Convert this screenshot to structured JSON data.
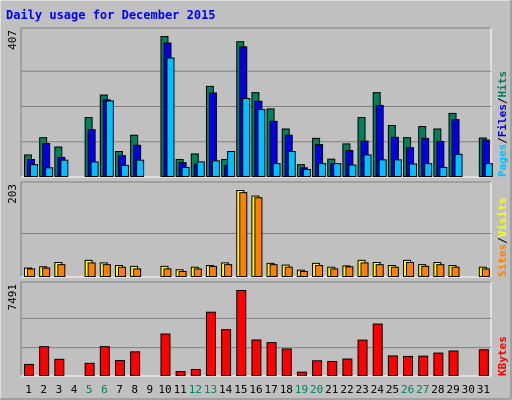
{
  "title": "Daily usage for December 2015",
  "colors": {
    "background": "#C0C0C0",
    "hits": "#00805C",
    "files": "#0000E6",
    "pages": "#00C0FF",
    "visits": "#FFFF00",
    "sites": "#FF8000",
    "kbytes": "#FF0000",
    "weekend_label": "#00805C",
    "weekday_label": "#000000",
    "title": "#0000FF"
  },
  "chart_data": [
    {
      "type": "bar",
      "panel": "hits-files-pages",
      "max_label": "407",
      "ylim": [
        0,
        407
      ],
      "legend": [
        "Pages",
        "Files",
        "Hits"
      ],
      "categories": [
        "1",
        "2",
        "3",
        "4",
        "5",
        "6",
        "7",
        "8",
        "9",
        "10",
        "11",
        "12",
        "13",
        "14",
        "15",
        "16",
        "17",
        "18",
        "19",
        "20",
        "21",
        "22",
        "23",
        "24",
        "25",
        "26",
        "27",
        "28",
        "29",
        "30",
        "31"
      ],
      "weekend": [
        5,
        6,
        12,
        13,
        19,
        20,
        26,
        27
      ],
      "series": [
        {
          "name": "Hits",
          "values": [
            65,
            115,
            88,
            0,
            173,
            238,
            75,
            122,
            0,
            407,
            52,
            68,
            263,
            52,
            392,
            245,
            198,
            140,
            37,
            113,
            53,
            97,
            173,
            245,
            150,
            115,
            147,
            140,
            185,
            0,
            114
          ]
        },
        {
          "name": "Files",
          "values": [
            52,
            98,
            58,
            0,
            138,
            224,
            63,
            93,
            0,
            388,
            43,
            38,
            244,
            35,
            377,
            220,
            162,
            122,
            28,
            95,
            40,
            78,
            105,
            208,
            116,
            86,
            113,
            104,
            167,
            0,
            108
          ]
        },
        {
          "name": "Pages",
          "values": [
            37,
            28,
            50,
            0,
            45,
            221,
            35,
            50,
            0,
            345,
            29,
            45,
            48,
            75,
            228,
            196,
            40,
            75,
            23,
            40,
            40,
            36,
            65,
            51,
            51,
            39,
            40,
            29,
            67,
            0,
            40
          ]
        }
      ]
    },
    {
      "type": "bar",
      "panel": "visits-sites",
      "max_label": "203",
      "ylim": [
        0,
        203
      ],
      "legend": [
        "Sites",
        "Visits"
      ],
      "categories": [
        "1",
        "2",
        "3",
        "4",
        "5",
        "6",
        "7",
        "8",
        "9",
        "10",
        "11",
        "12",
        "13",
        "14",
        "15",
        "16",
        "17",
        "18",
        "19",
        "20",
        "21",
        "22",
        "23",
        "24",
        "25",
        "26",
        "27",
        "28",
        "29",
        "30",
        "31"
      ],
      "series": [
        {
          "name": "Visits",
          "values": [
            22,
            25,
            35,
            0,
            40,
            34,
            28,
            26,
            0,
            26,
            18,
            24,
            28,
            34,
            203,
            190,
            33,
            29,
            17,
            33,
            24,
            27,
            40,
            35,
            28,
            40,
            30,
            35,
            28,
            0,
            24
          ]
        },
        {
          "name": "Sites",
          "values": [
            20,
            22,
            30,
            0,
            34,
            30,
            24,
            20,
            0,
            20,
            14,
            20,
            26,
            30,
            198,
            186,
            30,
            24,
            14,
            28,
            20,
            25,
            34,
            30,
            24,
            35,
            26,
            30,
            24,
            0,
            20
          ]
        }
      ]
    },
    {
      "type": "bar",
      "panel": "kbytes",
      "max_label": "7491",
      "ylim": [
        0,
        7491
      ],
      "legend": [
        "KBytes"
      ],
      "categories": [
        "1",
        "2",
        "3",
        "4",
        "5",
        "6",
        "7",
        "8",
        "9",
        "10",
        "11",
        "12",
        "13",
        "14",
        "15",
        "16",
        "17",
        "18",
        "19",
        "20",
        "21",
        "22",
        "23",
        "24",
        "25",
        "26",
        "27",
        "28",
        "29",
        "30",
        "31"
      ],
      "series": [
        {
          "name": "KBytes",
          "values": [
            1050,
            2600,
            1500,
            0,
            1150,
            2600,
            1390,
            2150,
            0,
            3700,
            430,
            610,
            5600,
            4080,
            7491,
            3180,
            2950,
            2400,
            380,
            1370,
            1310,
            1520,
            3170,
            4570,
            1790,
            1750,
            1770,
            2040,
            2220,
            0,
            2330
          ]
        }
      ]
    }
  ]
}
